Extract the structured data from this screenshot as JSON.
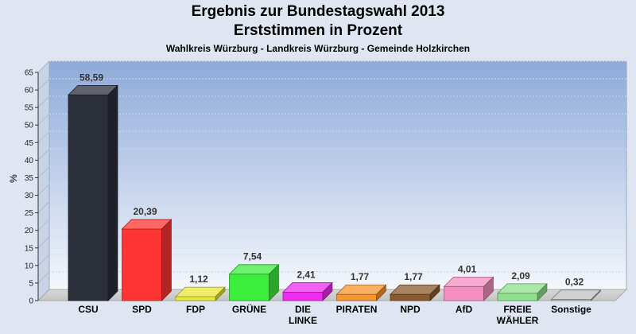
{
  "chart_data": {
    "type": "bar",
    "title": "Ergebnis zur Bundestagswahl 2013",
    "title_line2": "Erststimmen in Prozent",
    "subtitle": "Wahlkreis Würzburg - Landkreis Würzburg - Gemeinde Holzkirchen",
    "ylabel": "%",
    "xlabel": "",
    "ylim": [
      0,
      65
    ],
    "yticks": [
      "0",
      "5",
      "10",
      "15",
      "20",
      "25",
      "30",
      "35",
      "40",
      "45",
      "50",
      "55",
      "60",
      "65"
    ],
    "grid": true,
    "categories": [
      "CSU",
      "SPD",
      "FDP",
      "GRÜNE",
      "DIE LINKE",
      "PIRATEN",
      "NPD",
      "AfD",
      "FREIE WÄHLER",
      "Sonstige"
    ],
    "category_lines": [
      [
        "CSU"
      ],
      [
        "SPD"
      ],
      [
        "FDP"
      ],
      [
        "GRÜNE"
      ],
      [
        "DIE",
        "LINKE"
      ],
      [
        "PIRATEN"
      ],
      [
        "NPD"
      ],
      [
        "AfD"
      ],
      [
        "FREIE",
        "WÄHLER"
      ],
      [
        "Sonstige"
      ]
    ],
    "values": [
      58.59,
      20.39,
      1.12,
      7.54,
      2.41,
      1.77,
      1.77,
      4.01,
      2.09,
      0.32
    ],
    "value_labels": [
      "58,59",
      "20,39",
      "1,12",
      "7,54",
      "2,41",
      "1,77",
      "1,77",
      "4,01",
      "2,09",
      "0,32"
    ],
    "colors": [
      "#2b2f3a",
      "#ff3434",
      "#e8e83a",
      "#3cee3c",
      "#ee2cee",
      "#f7962e",
      "#8a5a2e",
      "#f58fc1",
      "#8ee08e",
      "#c0c0c0"
    ]
  }
}
